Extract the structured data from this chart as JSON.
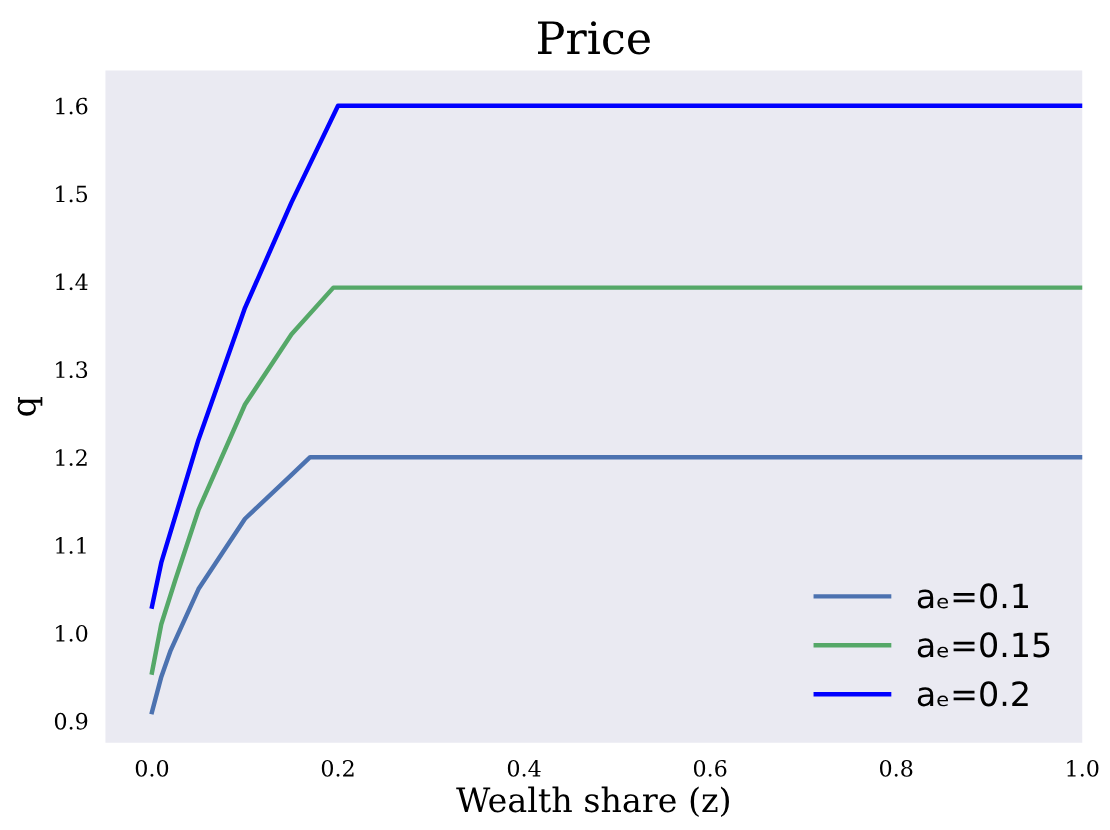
{
  "chart_data": {
    "type": "line",
    "title": "Price",
    "xlabel": "Wealth share (z)",
    "ylabel": "q",
    "xlim": [
      -0.05,
      1.0
    ],
    "ylim": [
      0.875,
      1.64
    ],
    "xticks": [
      {
        "value": 0.0,
        "label": "0.0"
      },
      0.2,
      0.4,
      0.6,
      0.8,
      {
        "value": 1.0,
        "label": "1.0"
      }
    ],
    "yticks": [
      0.9,
      {
        "value": 1.0,
        "label": "1.0"
      },
      1.1,
      1.2,
      1.3,
      1.4,
      1.5,
      1.6
    ],
    "grid": false,
    "legend": "bottom right",
    "series": [
      {
        "name": "aₑ=0.1",
        "color": "#4c72b0",
        "x": [
          0.0,
          0.01,
          0.02,
          0.05,
          0.1,
          0.15,
          0.17,
          1.0
        ],
        "values": [
          0.91,
          0.95,
          0.98,
          1.05,
          1.13,
          1.18,
          1.2,
          1.2
        ]
      },
      {
        "name": "aₑ=0.15",
        "color": "#55a868",
        "x": [
          0.0,
          0.01,
          0.025,
          0.05,
          0.1,
          0.15,
          0.195,
          1.0
        ],
        "values": [
          0.955,
          1.01,
          1.06,
          1.14,
          1.26,
          1.34,
          1.393,
          1.393
        ]
      },
      {
        "name": "aₑ=0.2",
        "color": "#0000ff",
        "x": [
          0.0,
          0.01,
          0.05,
          0.1,
          0.15,
          0.2,
          1.0
        ],
        "values": [
          1.03,
          1.08,
          1.22,
          1.37,
          1.49,
          1.6,
          1.6
        ]
      }
    ]
  }
}
